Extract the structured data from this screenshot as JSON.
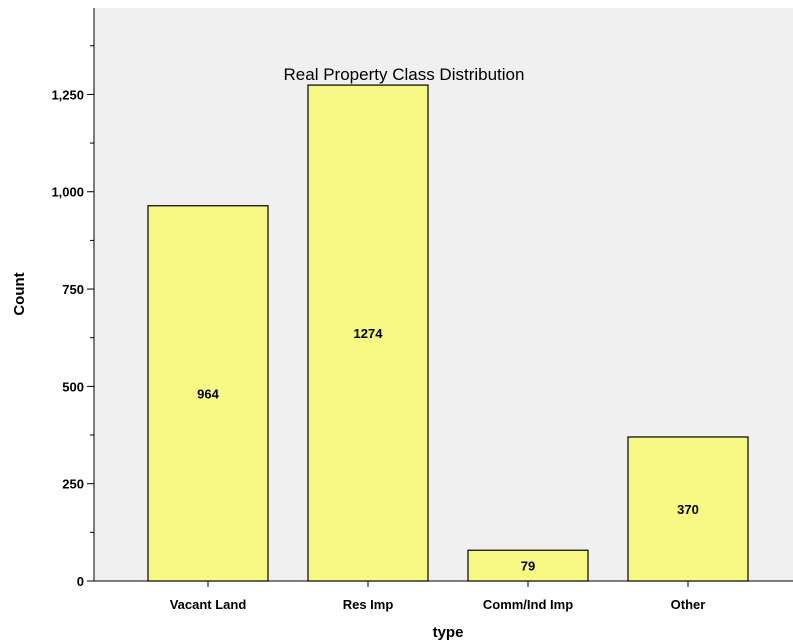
{
  "chart_data": {
    "type": "bar",
    "title": "Real Property Class Distribution",
    "xlabel": "type",
    "ylabel": "Count",
    "categories": [
      "Vacant Land",
      "Res Imp",
      "Comm/Ind Imp",
      "Other"
    ],
    "values": [
      964,
      1274,
      79,
      370
    ],
    "data_labels": [
      "964",
      "1274",
      "79",
      "370"
    ],
    "yticks": [
      0,
      250,
      500,
      750,
      1000,
      1250
    ],
    "ytick_labels": [
      "0",
      "250",
      "500",
      "750",
      "1,000",
      "1,250"
    ],
    "ylim": [
      0,
      1472
    ],
    "grid": false,
    "legend": "none",
    "colors": {
      "plot_background": "#f0f0f0",
      "bar_fill": "#f8f884",
      "bar_stroke": "#000000",
      "axis": "#000000"
    }
  }
}
